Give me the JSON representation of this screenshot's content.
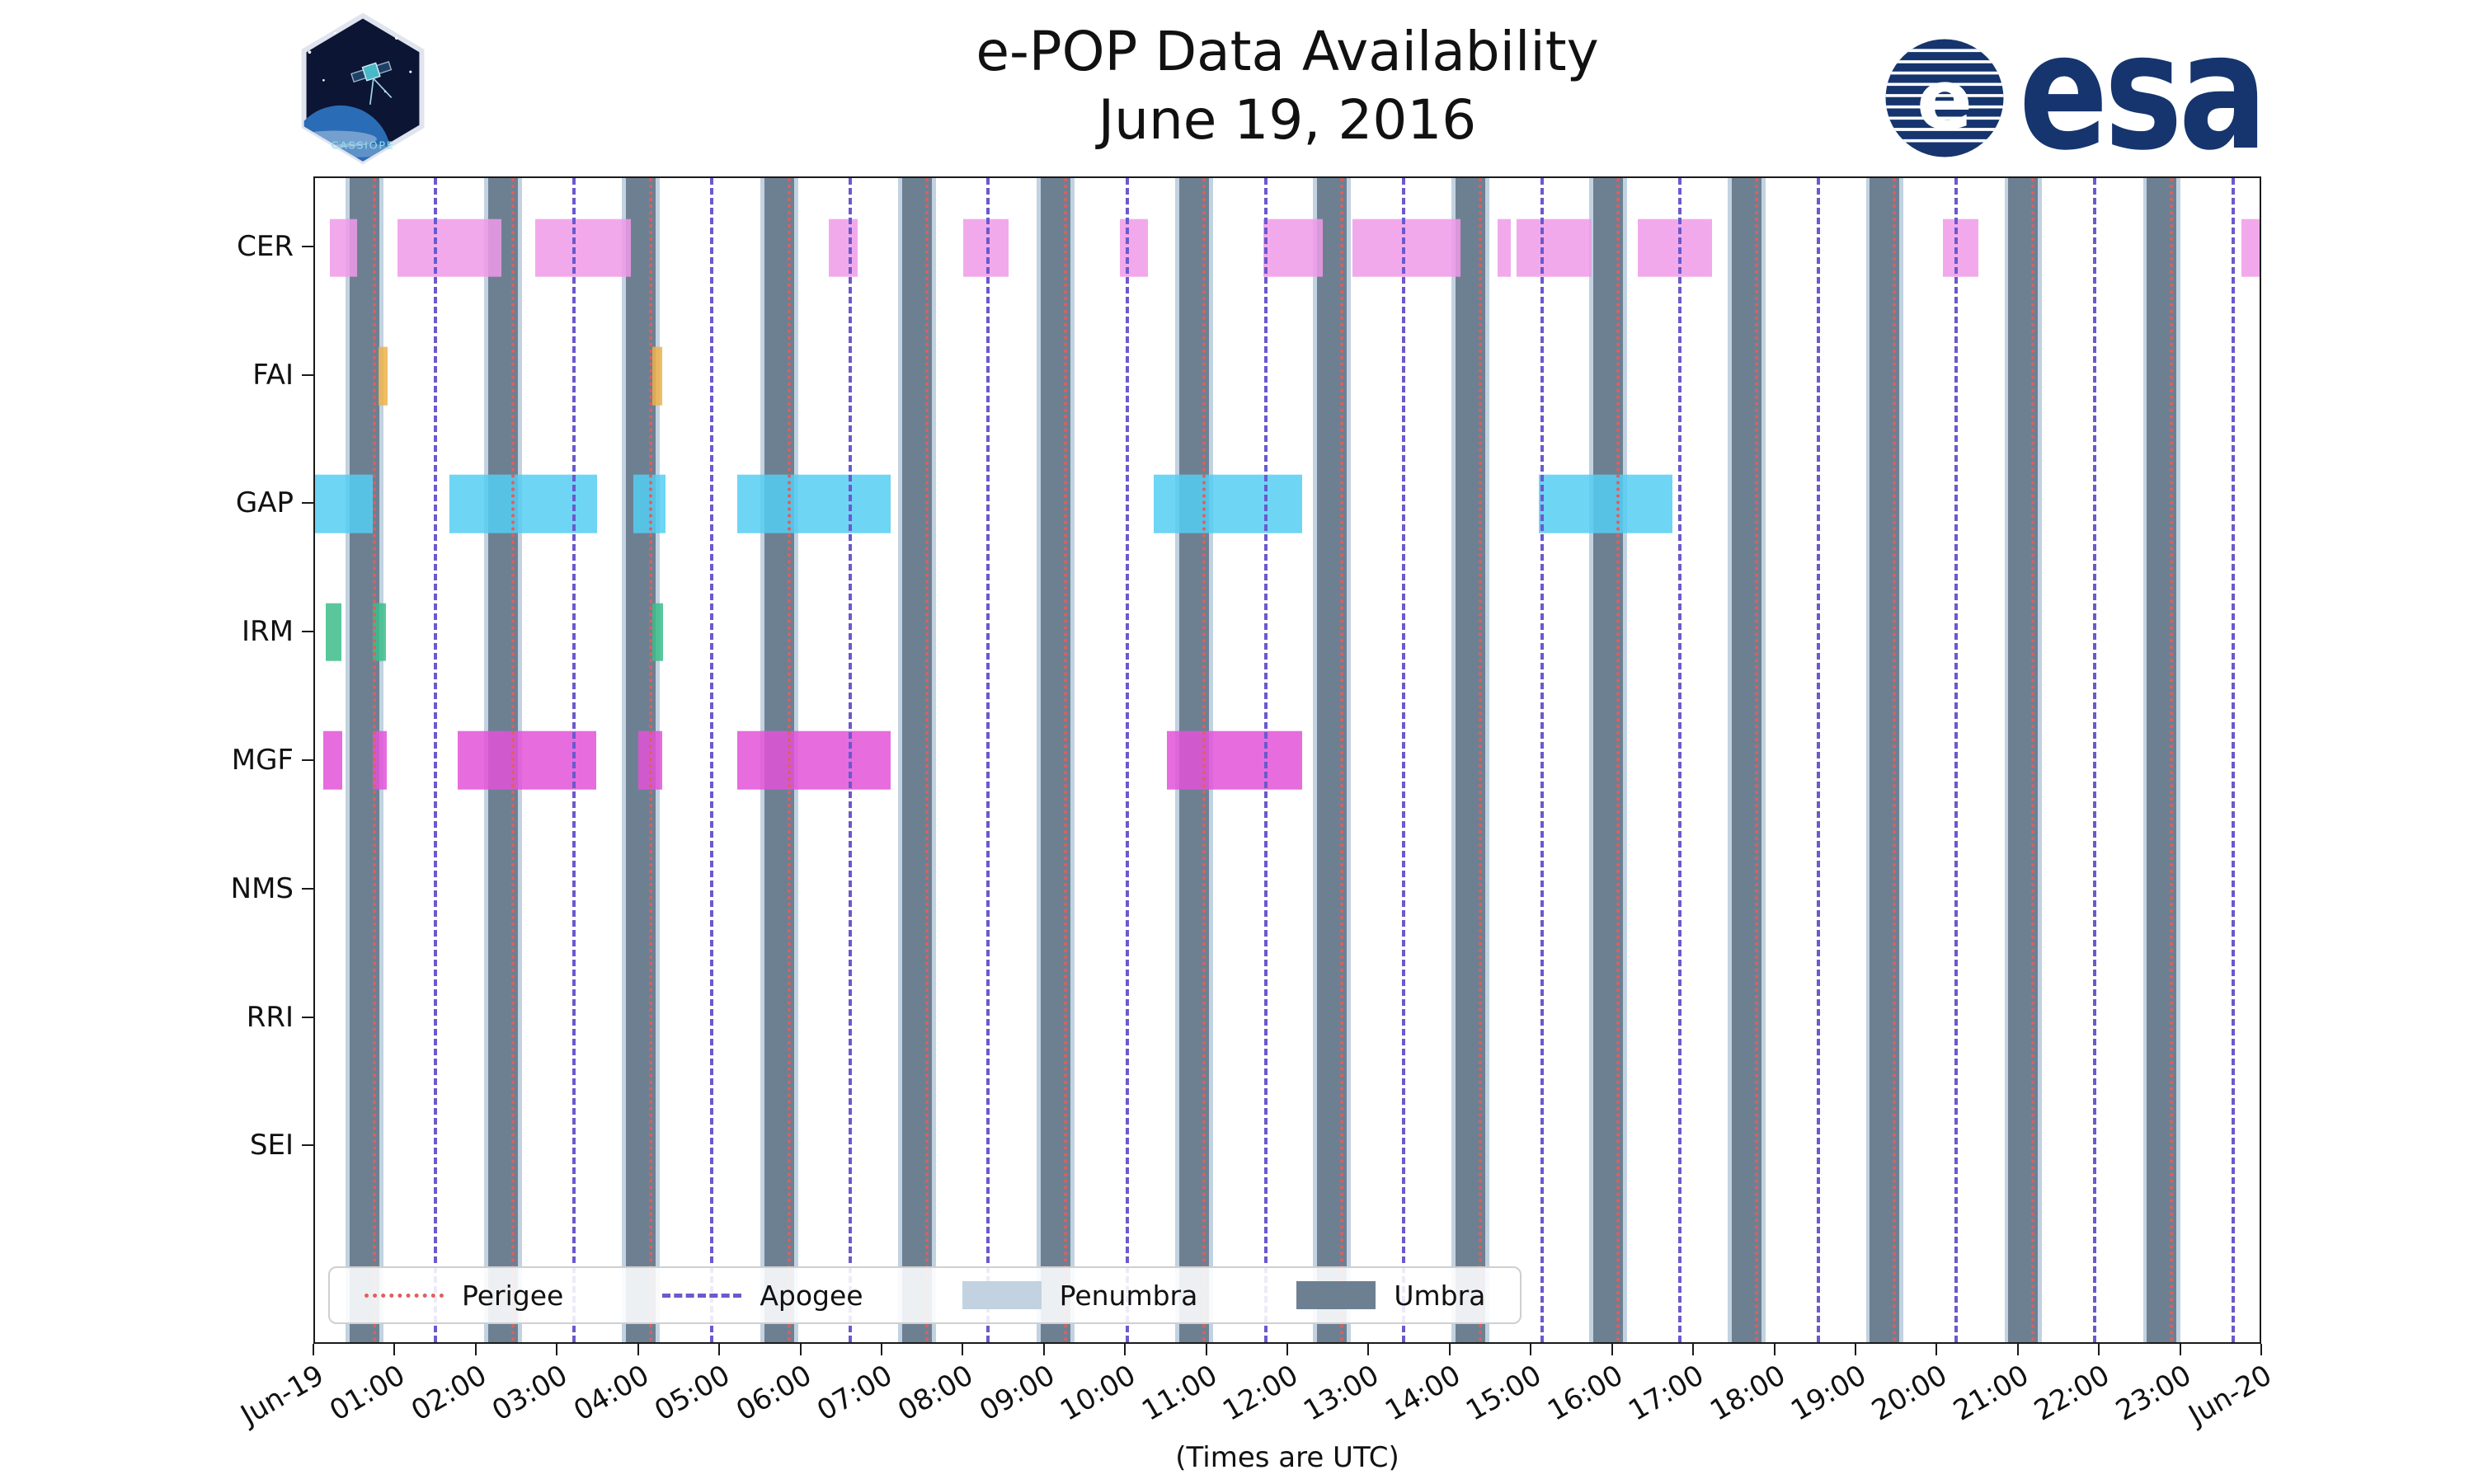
{
  "header": {
    "title": "e-POP Data Availability",
    "subtitle": "June 19, 2016",
    "mission_patch_label": "CASSIOPE",
    "esa_logo_text": "esa"
  },
  "chart_data": {
    "type": "timeline",
    "title": "e-POP Data Availability",
    "subtitle": "June 19, 2016",
    "x_axis": {
      "caption": "(Times are UTC)",
      "hours_span": 24,
      "tick_labels": [
        "Jun-19",
        "01:00",
        "02:00",
        "03:00",
        "04:00",
        "05:00",
        "06:00",
        "07:00",
        "08:00",
        "09:00",
        "10:00",
        "11:00",
        "12:00",
        "13:00",
        "14:00",
        "15:00",
        "16:00",
        "17:00",
        "18:00",
        "19:00",
        "20:00",
        "21:00",
        "22:00",
        "23:00",
        "Jun-20"
      ]
    },
    "instruments": [
      "CER",
      "FAI",
      "GAP",
      "IRM",
      "MGF",
      "NMS",
      "RRI",
      "SEI"
    ],
    "colors": {
      "CER": "#f09ae8",
      "FAI": "#edb14a",
      "GAP": "#55cef2",
      "IRM": "#3cbd8a",
      "MGF": "#e352d8",
      "perigee": "#e35d5d",
      "apogee": "#6a5acd",
      "penumbra": "#c2d2e0",
      "umbra": "#6d8092"
    },
    "orbital_events": {
      "perigee_hours": [
        0.71,
        2.42,
        4.12,
        5.83,
        7.53,
        9.24,
        10.95,
        12.65,
        14.36,
        16.06,
        17.77,
        19.47,
        21.18,
        22.89
      ],
      "apogee_hours": [
        1.47,
        3.18,
        4.88,
        6.59,
        8.29,
        10.0,
        11.71,
        13.41,
        15.12,
        16.82,
        18.53,
        20.23,
        21.94,
        23.65
      ],
      "umbra_intervals": [
        [
          0.43,
          0.79
        ],
        [
          2.14,
          2.5
        ],
        [
          3.84,
          4.2
        ],
        [
          5.55,
          5.91
        ],
        [
          7.25,
          7.61
        ],
        [
          8.96,
          9.32
        ],
        [
          10.67,
          11.03
        ],
        [
          12.37,
          12.73
        ],
        [
          14.08,
          14.44
        ],
        [
          15.78,
          16.14
        ],
        [
          17.49,
          17.85
        ],
        [
          19.19,
          19.55
        ],
        [
          20.9,
          21.26
        ],
        [
          22.61,
          22.97
        ]
      ],
      "penumbra_intervals": [
        [
          0.38,
          0.84
        ],
        [
          2.09,
          2.55
        ],
        [
          3.79,
          4.25
        ],
        [
          5.5,
          5.96
        ],
        [
          7.2,
          7.66
        ],
        [
          8.91,
          9.37
        ],
        [
          10.62,
          11.08
        ],
        [
          12.32,
          12.78
        ],
        [
          14.03,
          14.49
        ],
        [
          15.73,
          16.19
        ],
        [
          17.44,
          17.9
        ],
        [
          19.14,
          19.6
        ],
        [
          20.85,
          21.31
        ],
        [
          22.56,
          23.02
        ]
      ]
    },
    "availability": {
      "CER": [
        [
          0.18,
          0.52
        ],
        [
          1.02,
          2.3
        ],
        [
          2.72,
          3.9
        ],
        [
          6.34,
          6.7
        ],
        [
          8.0,
          8.56
        ],
        [
          9.93,
          10.28
        ],
        [
          11.7,
          12.44
        ],
        [
          12.8,
          14.14
        ],
        [
          14.6,
          14.76
        ],
        [
          14.83,
          15.76
        ],
        [
          16.33,
          17.24
        ],
        [
          20.09,
          20.53
        ],
        [
          23.78,
          24
        ]
      ],
      "FAI": [
        [
          0.78,
          0.9
        ],
        [
          4.16,
          4.28
        ]
      ],
      "GAP": [
        [
          0,
          0.71
        ],
        [
          1.66,
          3.48
        ],
        [
          3.93,
          4.33
        ],
        [
          5.21,
          7.1
        ],
        [
          10.35,
          12.18
        ],
        [
          15.1,
          16.75
        ]
      ],
      "IRM": [
        [
          0.13,
          0.33
        ],
        [
          0.71,
          0.88
        ],
        [
          4.16,
          4.3
        ]
      ],
      "MGF": [
        [
          0.1,
          0.34
        ],
        [
          0.71,
          0.89
        ],
        [
          1.76,
          3.47
        ],
        [
          3.99,
          4.28
        ],
        [
          5.21,
          7.1
        ],
        [
          10.51,
          12.18
        ]
      ],
      "NMS": [],
      "RRI": [],
      "SEI": []
    },
    "legend": [
      {
        "label": "Perigee",
        "swatch": "dotted-line",
        "color": "#e35d5d"
      },
      {
        "label": "Apogee",
        "swatch": "dashed-line",
        "color": "#6a5acd"
      },
      {
        "label": "Penumbra",
        "swatch": "patch",
        "color": "#c2d2e0"
      },
      {
        "label": "Umbra",
        "swatch": "patch",
        "color": "#6d8092"
      }
    ]
  }
}
